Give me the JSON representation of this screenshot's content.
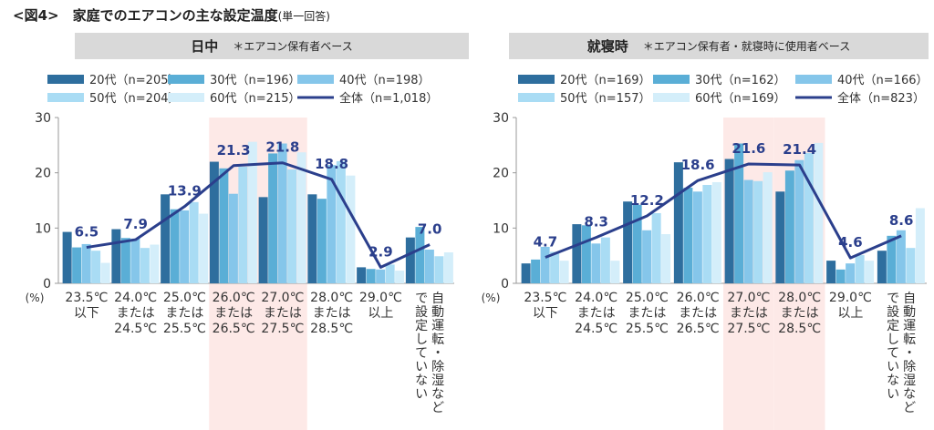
{
  "title": "<図4>　家庭でのエアコンの主な設定温度",
  "title_note": "(単一回答)",
  "colors": {
    "s20": "#2e6e9e",
    "s30": "#5aaed6",
    "s40": "#85c6ea",
    "s50": "#a9dcf4",
    "s60": "#d4eefa",
    "total": "#2b3f8c",
    "highlight": "#fde9e7",
    "header_bg": "#d9d9d9"
  },
  "y_unit": "(%)",
  "chart_data": [
    {
      "type": "bar",
      "title": "日中",
      "subtitle": "＊エアコン保有者ベース",
      "categories": [
        "23.5℃\n以下",
        "24.0℃\nまたは\n24.5℃",
        "25.0℃\nまたは\n25.5℃",
        "26.0℃\nまたは\n26.5℃",
        "27.0℃\nまたは\n27.5℃",
        "28.0℃\nまたは\n28.5℃",
        "29.0℃\n以上",
        "自動運転・除湿など\nで設定していない"
      ],
      "highlight": [
        3,
        4
      ],
      "ylim": [
        0,
        30
      ],
      "yticks": [
        0,
        10,
        20,
        30
      ],
      "series": [
        {
          "name": "20代（n=205）",
          "values": [
            9.3,
            9.8,
            16.1,
            22.0,
            15.6,
            16.1,
            2.9,
            8.3
          ]
        },
        {
          "name": "30代（n=196）",
          "values": [
            6.5,
            8.2,
            13.4,
            20.8,
            23.5,
            15.3,
            2.6,
            10.2
          ]
        },
        {
          "name": "40代（n=198）",
          "values": [
            7.1,
            8.1,
            13.2,
            16.2,
            25.3,
            21.4,
            2.5,
            6.1
          ]
        },
        {
          "name": "50代（n=204）",
          "values": [
            5.9,
            6.4,
            14.7,
            21.1,
            20.6,
            22.1,
            3.4,
            4.9
          ]
        },
        {
          "name": "60代（n=215）",
          "values": [
            3.7,
            7.0,
            12.6,
            25.6,
            23.7,
            19.5,
            2.3,
            5.6
          ]
        }
      ],
      "total": {
        "name": "全体（n=1,018）",
        "values": [
          6.5,
          7.9,
          13.9,
          21.3,
          21.8,
          18.8,
          2.9,
          7.0
        ],
        "labels": [
          "6.5",
          "7.9",
          "13.9",
          "21.3",
          "21.8",
          "18.8",
          "2.9",
          "7.0"
        ]
      }
    },
    {
      "type": "bar",
      "title": "就寝時",
      "subtitle": "＊エアコン保有者・就寝時に使用者ベース",
      "categories": [
        "23.5℃\n以下",
        "24.0℃\nまたは\n24.5℃",
        "25.0℃\nまたは\n25.5℃",
        "26.0℃\nまたは\n26.5℃",
        "27.0℃\nまたは\n27.5℃",
        "28.0℃\nまたは\n28.5℃",
        "29.0℃\n以上",
        "自動運転・除湿など\nで設定していない"
      ],
      "highlight": [
        4,
        5
      ],
      "ylim": [
        0,
        30
      ],
      "yticks": [
        0,
        10,
        20,
        30
      ],
      "series": [
        {
          "name": "20代（n=169）",
          "values": [
            3.6,
            10.7,
            14.8,
            21.9,
            22.5,
            16.6,
            4.1,
            5.9
          ]
        },
        {
          "name": "30代（n=162）",
          "values": [
            4.3,
            10.5,
            14.2,
            17.3,
            25.3,
            20.4,
            2.5,
            8.6
          ]
        },
        {
          "name": "40代（n=166）",
          "values": [
            6.6,
            7.2,
            9.6,
            16.6,
            18.7,
            22.3,
            3.6,
            9.6
          ]
        },
        {
          "name": "50代（n=157）",
          "values": [
            5.7,
            8.3,
            12.7,
            17.8,
            18.5,
            23.6,
            5.1,
            6.4
          ]
        },
        {
          "name": "60代（n=169）",
          "values": [
            4.1,
            4.1,
            8.9,
            18.3,
            20.1,
            25.4,
            4.1,
            13.6
          ]
        }
      ],
      "total": {
        "name": "全体（n=823）",
        "values": [
          4.7,
          8.3,
          12.2,
          18.6,
          21.6,
          21.4,
          4.6,
          8.6
        ],
        "labels": [
          "4.7",
          "8.3",
          "12.2",
          "18.6",
          "21.6",
          "21.4",
          "4.6",
          "8.6"
        ]
      }
    }
  ]
}
